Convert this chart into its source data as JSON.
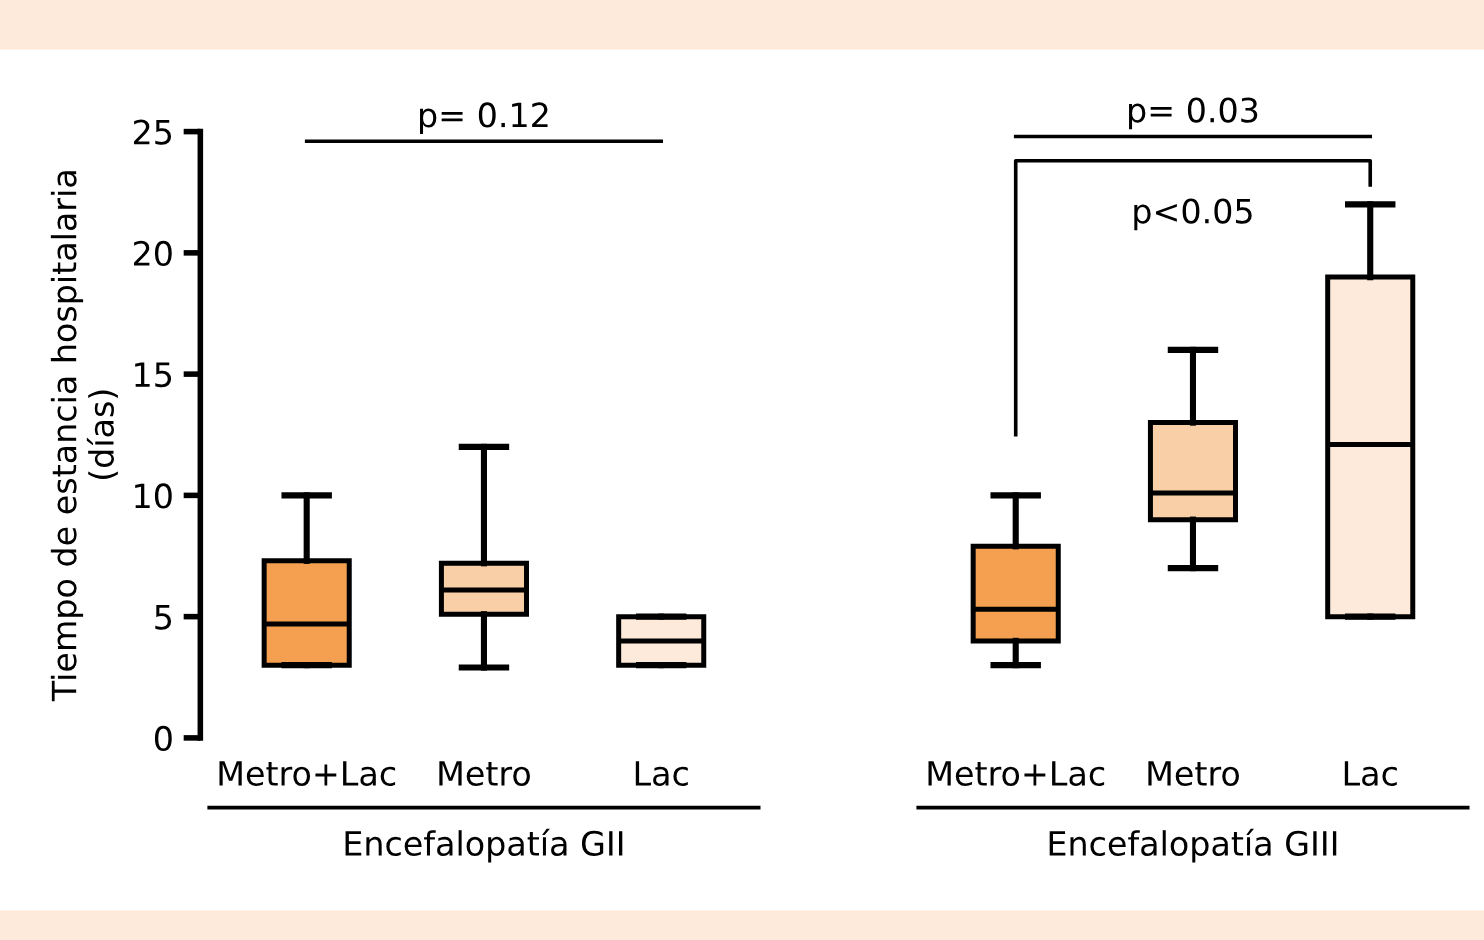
{
  "chart_data": {
    "type": "box",
    "ylabel": "Tiempo de estancia hospitalaria\n(días)",
    "categories": [
      "Metro+Lac",
      "Metro",
      "Lac",
      null,
      "Metro+Lac",
      "Metro",
      "Lac"
    ],
    "boxes": [
      {
        "low": 3,
        "q1": 3,
        "median": 4.7,
        "q3": 7.3,
        "high": 10
      },
      {
        "low": 2.9,
        "q1": 5.1,
        "median": 6.1,
        "q3": 7.2,
        "high": 12
      },
      {
        "low": 3,
        "q1": 3,
        "median": 4,
        "q3": 5,
        "high": 5
      },
      null,
      {
        "low": 3,
        "q1": 4,
        "median": 5.3,
        "q3": 7.9,
        "high": 10
      },
      {
        "low": 7,
        "q1": 9,
        "median": 10.1,
        "q3": 13,
        "high": 16
      },
      {
        "low": 5,
        "q1": 5,
        "median": 12.1,
        "q3": 19,
        "high": 22
      }
    ],
    "colors": [
      "#f4a050",
      "#f8cfa6",
      "#fdeadb",
      null,
      "#f4a050",
      "#f8cfa6",
      "#fdeadb"
    ],
    "ylim": [
      0,
      25
    ],
    "yticks": [
      0,
      5,
      10,
      15,
      20,
      25
    ],
    "grid": false,
    "legend": false,
    "annotations": [
      "p= 0.12",
      "p= 0.03",
      "p<0.05",
      "Encefalopatía GII",
      "Encefalopatía GIII"
    ]
  }
}
